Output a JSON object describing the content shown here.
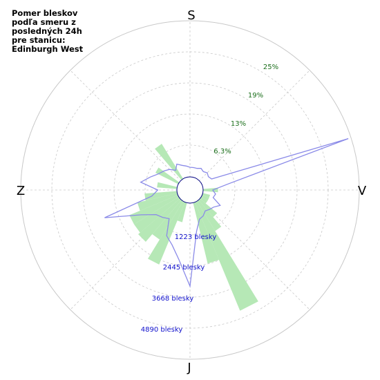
{
  "title": "Pomer bleskov\npodľa smeru z\nposledných 24h\npre stanicu:\nEdinburgh West",
  "colors": {
    "bars": "#b6e8b6",
    "line": "#8a8ae8",
    "grid": "#c8c8c8",
    "pct_text": "#1a6e1a",
    "count_text": "#1010cc"
  },
  "chart_data": {
    "type": "polar",
    "orientation": "south at top, clockwise from south",
    "directions": {
      "top": "S",
      "right": "V",
      "bottom": "J",
      "left": "Z"
    },
    "percent_ticks": [
      "6.3%",
      "13%",
      "19%",
      "25%"
    ],
    "percent_max": 25,
    "count_ticks": [
      "1223 blesky",
      "2445 blesky",
      "3668 blesky",
      "4890 blesky"
    ],
    "count_max": 4890,
    "bar_width_deg": 9,
    "bars": [
      {
        "angle": 36,
        "pct": 8.2
      },
      {
        "angle": 59,
        "pct": 5.1
      },
      {
        "angle": 81,
        "pct": 4.0
      },
      {
        "angle": 99,
        "pct": 6.5
      },
      {
        "angle": 108,
        "pct": 8.2
      },
      {
        "angle": 117,
        "pct": 10.5
      },
      {
        "angle": 126,
        "pct": 10.5
      },
      {
        "angle": 135,
        "pct": 11.0
      },
      {
        "angle": 144,
        "pct": 9.0
      },
      {
        "angle": 153,
        "pct": 13.5
      },
      {
        "angle": 162,
        "pct": 4.0
      },
      {
        "angle": 198,
        "pct": 12.5
      },
      {
        "angle": 207,
        "pct": 23.5
      },
      {
        "angle": 216,
        "pct": 7.0
      },
      {
        "angle": 225,
        "pct": 4.5
      },
      {
        "angle": 234,
        "pct": 1.5
      },
      {
        "angle": 243,
        "pct": 1.5
      },
      {
        "angle": 252,
        "pct": 1.5
      },
      {
        "angle": 270,
        "pct": 3.0
      }
    ],
    "line": [
      {
        "angle": 0,
        "count": 300
      },
      {
        "angle": 9,
        "count": 350
      },
      {
        "angle": 18,
        "count": 400
      },
      {
        "angle": 27,
        "count": 500
      },
      {
        "angle": 36,
        "count": 350
      },
      {
        "angle": 45,
        "count": 500
      },
      {
        "angle": 54,
        "count": 600
      },
      {
        "angle": 63,
        "count": 700
      },
      {
        "angle": 72,
        "count": 900
      },
      {
        "angle": 81,
        "count": 1150
      },
      {
        "angle": 90,
        "count": 600
      },
      {
        "angle": 99,
        "count": 800
      },
      {
        "angle": 108,
        "count": 2400
      },
      {
        "angle": 117,
        "count": 1300
      },
      {
        "angle": 126,
        "count": 900
      },
      {
        "angle": 135,
        "count": 800
      },
      {
        "angle": 144,
        "count": 700
      },
      {
        "angle": 153,
        "count": 1200
      },
      {
        "angle": 162,
        "count": 1400
      },
      {
        "angle": 171,
        "count": 1800
      },
      {
        "angle": 180,
        "count": 2600
      },
      {
        "angle": 189,
        "count": 900
      },
      {
        "angle": 198,
        "count": 550
      },
      {
        "angle": 207,
        "count": 500
      },
      {
        "angle": 216,
        "count": 400
      },
      {
        "angle": 225,
        "count": 450
      },
      {
        "angle": 234,
        "count": 500
      },
      {
        "angle": 243,
        "count": 650
      },
      {
        "angle": 252,
        "count": 350
      },
      {
        "angle": 261,
        "count": 400
      },
      {
        "angle": 270,
        "count": 300
      },
      {
        "angle": 279,
        "count": 800
      },
      {
        "angle": 288,
        "count": 4800
      },
      {
        "angle": 297,
        "count": 350
      },
      {
        "angle": 306,
        "count": 300
      },
      {
        "angle": 315,
        "count": 350
      },
      {
        "angle": 324,
        "count": 300
      },
      {
        "angle": 333,
        "count": 350
      },
      {
        "angle": 342,
        "count": 300
      },
      {
        "angle": 351,
        "count": 300
      }
    ]
  }
}
